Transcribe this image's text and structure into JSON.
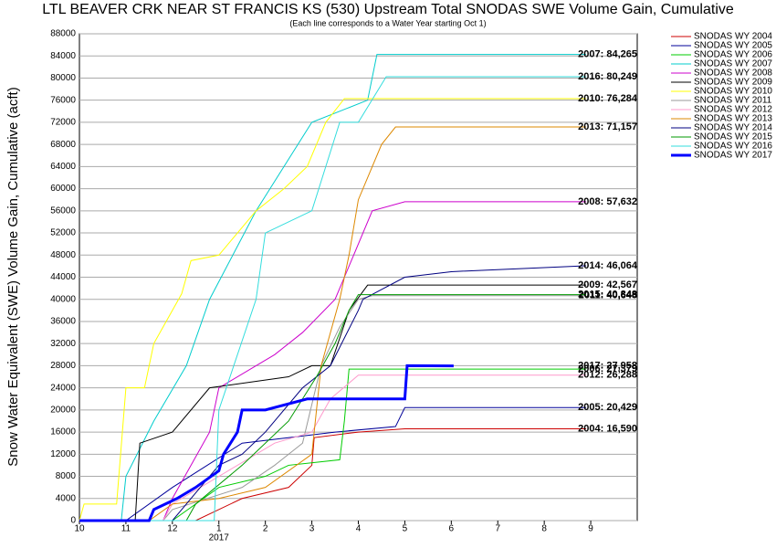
{
  "chart_data": {
    "type": "line",
    "title": "LTL BEAVER CRK NEAR ST FRANCIS KS (530) Upstream Total SNODAS SWE Volume Gain, Cumulative",
    "subtitle": "(Each line corresponds to a Water Year starting Oct 1)",
    "y_label": "Snow Water Equivalent (SWE) Volume Gain, Cumulative (acft)",
    "x_year_label": "2017",
    "xlim": [
      0,
      12
    ],
    "ylim": [
      0,
      88000
    ],
    "xticks": [
      {
        "value": 0,
        "label": "10"
      },
      {
        "value": 1,
        "label": "11"
      },
      {
        "value": 2,
        "label": "12"
      },
      {
        "value": 3,
        "label": "1"
      },
      {
        "value": 4,
        "label": "2"
      },
      {
        "value": 5,
        "label": "3"
      },
      {
        "value": 6,
        "label": "4"
      },
      {
        "value": 7,
        "label": "5"
      },
      {
        "value": 8,
        "label": "6"
      },
      {
        "value": 9,
        "label": "7"
      },
      {
        "value": 10,
        "label": "8"
      },
      {
        "value": 11,
        "label": "9"
      }
    ],
    "yticks": [
      0,
      4000,
      8000,
      12000,
      16000,
      20000,
      24000,
      28000,
      32000,
      36000,
      40000,
      44000,
      48000,
      52000,
      56000,
      60000,
      64000,
      68000,
      72000,
      76000,
      80000,
      84000,
      88000
    ],
    "grid": true,
    "series": [
      {
        "name": "SNODAS WY 2004",
        "color": "#cc0000",
        "label": "2004: 16,590",
        "x": [
          0,
          2.5,
          3.5,
          4.5,
          5.0,
          5.05,
          6.0,
          7.0,
          10.9
        ],
        "values": [
          0,
          0,
          4000,
          6000,
          10000,
          15000,
          16000,
          16590,
          16590
        ]
      },
      {
        "name": "SNODAS WY 2005",
        "color": "#000099",
        "label": "2005: 20,429",
        "x": [
          0,
          1.0,
          2.0,
          3.5,
          5.5,
          6.8,
          7.0,
          10.9
        ],
        "values": [
          0,
          0,
          6000,
          14000,
          16000,
          17000,
          20429,
          20429
        ]
      },
      {
        "name": "SNODAS WY 2006",
        "color": "#00cc00",
        "label": "2006: 27,379",
        "x": [
          0,
          2.0,
          3.0,
          4.0,
          4.5,
          5.6,
          5.7,
          5.8,
          10.9
        ],
        "values": [
          0,
          0,
          6000,
          8000,
          10000,
          11000,
          18000,
          27379,
          27379
        ]
      },
      {
        "name": "SNODAS WY 2007",
        "color": "#00cccc",
        "label": "2007: 84,265",
        "x": [
          0,
          0.9,
          1.0,
          1.6,
          2.3,
          2.8,
          3.8,
          4.4,
          5.0,
          6.2,
          6.4,
          10.9
        ],
        "values": [
          0,
          0,
          8000,
          18000,
          28000,
          40000,
          56000,
          64000,
          72000,
          76000,
          84265,
          84265
        ]
      },
      {
        "name": "SNODAS WY 2008",
        "color": "#cc00cc",
        "label": "2008: 57,632",
        "x": [
          0,
          1.8,
          2.0,
          2.8,
          3.0,
          4.2,
          4.8,
          5.5,
          5.9,
          6.3,
          7.0,
          10.9
        ],
        "values": [
          0,
          0,
          4000,
          16000,
          24000,
          30000,
          34000,
          40000,
          48000,
          56000,
          57632,
          57632
        ]
      },
      {
        "name": "SNODAS WY 2009",
        "color": "#000000",
        "label": "2009: 42,567",
        "x": [
          0,
          1.2,
          1.3,
          2.0,
          2.8,
          4.5,
          5.0,
          5.4,
          5.8,
          6.2,
          10.9
        ],
        "values": [
          0,
          0,
          14000,
          16000,
          24000,
          26000,
          28000,
          28000,
          38000,
          42567,
          42567
        ]
      },
      {
        "name": "SNODAS WY 2010",
        "color": "#ffff00",
        "label": "2010: 76,284",
        "x": [
          0,
          0.1,
          0.8,
          1.0,
          1.4,
          1.6,
          2.2,
          2.4,
          3.0,
          3.4,
          3.8,
          4.4,
          4.9,
          5.3,
          5.7,
          10.9
        ],
        "values": [
          0,
          3000,
          3000,
          24000,
          24000,
          32000,
          41000,
          47000,
          48000,
          52000,
          56000,
          60000,
          64000,
          72000,
          76284,
          76284
        ]
      },
      {
        "name": "SNODAS WY 2011",
        "color": "#999999",
        "label": "2011: 40,648",
        "x": [
          0,
          1.8,
          2.0,
          3.5,
          4.2,
          4.8,
          5.2,
          5.6,
          6.0,
          6.3,
          10.9
        ],
        "values": [
          0,
          0,
          2000,
          6000,
          10000,
          14000,
          28000,
          35000,
          40000,
          40648,
          40648
        ]
      },
      {
        "name": "SNODAS WY 2012",
        "color": "#ff99cc",
        "label": "2012: 26,288",
        "x": [
          0,
          1.8,
          2.0,
          3.0,
          4.2,
          5.0,
          5.4,
          6.0,
          10.9
        ],
        "values": [
          0,
          0,
          3000,
          8000,
          14000,
          16000,
          22000,
          26288,
          26288
        ]
      },
      {
        "name": "SNODAS WY 2013",
        "color": "#dd8800",
        "label": "2013: 71,157",
        "x": [
          0,
          1.5,
          2.0,
          3.0,
          4.0,
          5.0,
          5.2,
          5.6,
          5.8,
          6.0,
          6.5,
          6.8,
          10.9
        ],
        "values": [
          0,
          0,
          3000,
          4000,
          6000,
          12000,
          28000,
          40000,
          48000,
          58000,
          68000,
          71157,
          71157
        ]
      },
      {
        "name": "SNODAS WY 2014",
        "color": "#000080",
        "label": "2014: 46,064",
        "x": [
          0,
          2.0,
          2.2,
          3.0,
          3.5,
          4.0,
          4.8,
          5.4,
          6.0,
          6.1,
          7.0,
          8.0,
          10.9
        ],
        "values": [
          0,
          0,
          2000,
          10000,
          12000,
          16000,
          24000,
          28000,
          38000,
          40000,
          44000,
          45000,
          46064
        ]
      },
      {
        "name": "SNODAS WY 2015",
        "color": "#009900",
        "label": "2015: 40,848",
        "x": [
          0,
          2.3,
          2.5,
          3.5,
          4.5,
          5.1,
          5.5,
          5.8,
          6.0,
          10.9
        ],
        "values": [
          0,
          0,
          3000,
          10000,
          18000,
          26000,
          32000,
          38000,
          40848,
          40848
        ]
      },
      {
        "name": "SNODAS WY 2016",
        "color": "#33dddd",
        "label": "2016: 80,249",
        "x": [
          0,
          2.9,
          3.0,
          3.8,
          4.0,
          5.0,
          5.6,
          6.0,
          6.6,
          10.9
        ],
        "values": [
          0,
          0,
          20000,
          40000,
          52000,
          56000,
          72000,
          72000,
          80249,
          80249
        ]
      },
      {
        "name": "SNODAS WY 2017",
        "color": "#0000ff",
        "width": 3,
        "label": "2017: 27,958",
        "x": [
          0,
          1.5,
          1.6,
          2.1,
          2.5,
          3.0,
          3.1,
          3.4,
          3.5,
          4.0,
          4.9,
          6.0,
          7.0,
          7.05,
          8.05
        ],
        "values": [
          0,
          0,
          2000,
          4000,
          6000,
          9000,
          12000,
          16000,
          20000,
          20000,
          22000,
          22000,
          22000,
          28000,
          27958
        ]
      }
    ]
  }
}
